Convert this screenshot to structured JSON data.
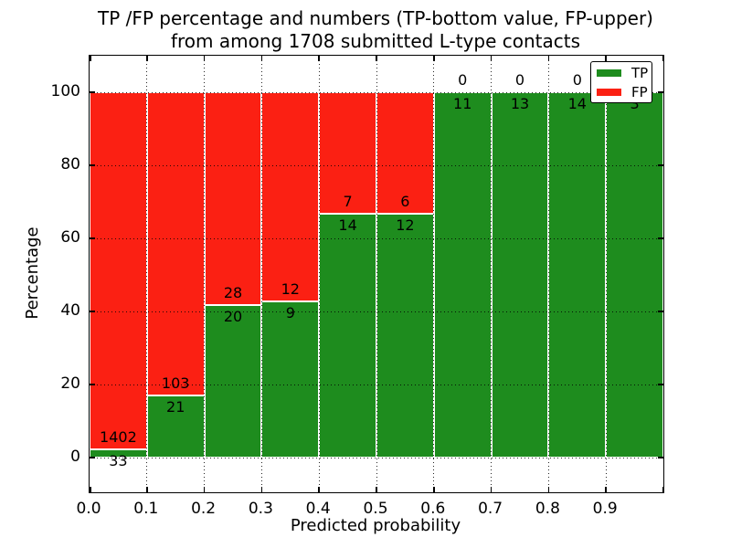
{
  "title": {
    "line1": "TP /FP percentage and numbers (TP-bottom value, FP-upper)",
    "line2": "from among 1708 submitted L-type contacts"
  },
  "axes": {
    "xlabel": "Predicted probability",
    "ylabel": "Percentage",
    "x_tick_labels": [
      "0.0",
      "0.1",
      "0.2",
      "0.3",
      "0.4",
      "0.5",
      "0.6",
      "0.7",
      "0.8",
      "0.9"
    ],
    "y_tick_labels": [
      "0",
      "20",
      "40",
      "60",
      "80",
      "100"
    ],
    "y_tick_values": [
      0,
      20,
      40,
      60,
      80,
      100
    ]
  },
  "legend": {
    "items": [
      {
        "label": "TP",
        "color": "#1e8c1e"
      },
      {
        "label": "FP",
        "color": "#fb2013"
      }
    ]
  },
  "colors": {
    "tp_green": "#1e8c1e",
    "fp_red": "#fb2013",
    "grid": "#000000",
    "background": "#ffffff"
  },
  "chart_data": {
    "type": "bar",
    "stacked": true,
    "normalized_to_percent": true,
    "title": "TP /FP percentage and numbers (TP-bottom value, FP-upper)\nfrom among 1708 submitted L-type contacts",
    "xlabel": "Predicted probability",
    "ylabel": "Percentage",
    "total_contacts": 1708,
    "x_bins": [
      [
        0.0,
        0.1
      ],
      [
        0.1,
        0.2
      ],
      [
        0.2,
        0.3
      ],
      [
        0.3,
        0.4
      ],
      [
        0.4,
        0.5
      ],
      [
        0.5,
        0.6
      ],
      [
        0.6,
        0.7
      ],
      [
        0.7,
        0.8
      ],
      [
        0.8,
        0.9
      ],
      [
        0.9,
        1.0
      ]
    ],
    "categories": [
      "0.0-0.1",
      "0.1-0.2",
      "0.2-0.3",
      "0.3-0.4",
      "0.4-0.5",
      "0.5-0.6",
      "0.6-0.7",
      "0.7-0.8",
      "0.8-0.9",
      "0.9-1.0"
    ],
    "series": [
      {
        "name": "TP",
        "position": "bottom",
        "color": "#1e8c1e",
        "values": [
          33,
          21,
          20,
          9,
          14,
          12,
          11,
          13,
          14,
          3
        ]
      },
      {
        "name": "FP",
        "position": "top",
        "color": "#fb2013",
        "values": [
          1402,
          103,
          28,
          12,
          7,
          6,
          0,
          0,
          0,
          0
        ]
      }
    ],
    "tp_percent_of_bin": [
      2.3,
      16.9,
      41.7,
      42.9,
      66.7,
      66.7,
      100,
      100,
      100,
      100
    ],
    "xlim": [
      0.0,
      1.0
    ],
    "ylim_percent": [
      0,
      100
    ],
    "grid": "dotted",
    "legend_position": "upper right"
  }
}
